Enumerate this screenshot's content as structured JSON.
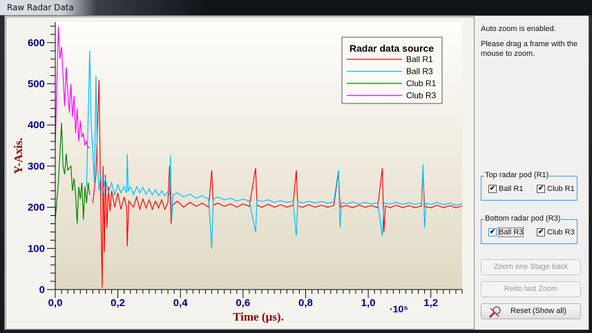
{
  "window": {
    "title": "Raw Radar Data"
  },
  "side": {
    "info1": "Auto zoom is enabled.",
    "info2": "Please drag a frame with the mouse to zoom.",
    "group_top": {
      "label": "Top radar pod (R1)",
      "ball": "Ball R1",
      "club": "Club R1",
      "ball_checked": true,
      "club_checked": true
    },
    "group_bottom": {
      "label": "Bottom radar pod (R3)",
      "ball": "Ball R3",
      "club": "Club R3",
      "ball_checked": true,
      "club_checked": true
    },
    "btn_back": "Zoom one Stage back",
    "btn_redo": "Redo last Zoom",
    "btn_reset": "Reset (Show all)",
    "check": "✔"
  },
  "chart_data": {
    "type": "line",
    "xlabel": "Time (µs).",
    "ylabel": "Y-Axis.",
    "x_multiplier": "·10⁵",
    "xlim": [
      0,
      1.3
    ],
    "ylim": [
      0,
      650
    ],
    "xticks": [
      "0,0",
      "0,2",
      "0,4",
      "0,6",
      "0,8",
      "1,0",
      "1,2"
    ],
    "xtick_values": [
      0,
      0.2,
      0.4,
      0.6,
      0.8,
      1.0,
      1.2
    ],
    "yticks": [
      0,
      100,
      200,
      300,
      400,
      500,
      600
    ],
    "legend": {
      "title": "Radar data source",
      "position": "top-right"
    },
    "series": [
      {
        "name": "Ball R1",
        "color": "#ff0000",
        "points": [
          [
            0.12,
            210
          ],
          [
            0.13,
            280
          ],
          [
            0.14,
            510
          ],
          [
            0.145,
            220
          ],
          [
            0.15,
            5
          ],
          [
            0.153,
            300
          ],
          [
            0.157,
            90
          ],
          [
            0.16,
            280
          ],
          [
            0.165,
            150
          ],
          [
            0.17,
            250
          ],
          [
            0.175,
            190
          ],
          [
            0.18,
            240
          ],
          [
            0.19,
            200
          ],
          [
            0.2,
            235
          ],
          [
            0.21,
            195
          ],
          [
            0.22,
            225
          ],
          [
            0.228,
            200
          ],
          [
            0.23,
            105
          ],
          [
            0.235,
            215
          ],
          [
            0.25,
            200
          ],
          [
            0.26,
            225
          ],
          [
            0.27,
            195
          ],
          [
            0.28,
            220
          ],
          [
            0.29,
            198
          ],
          [
            0.3,
            218
          ],
          [
            0.31,
            195
          ],
          [
            0.32,
            215
          ],
          [
            0.33,
            198
          ],
          [
            0.34,
            218
          ],
          [
            0.35,
            195
          ],
          [
            0.36,
            212
          ],
          [
            0.365,
            300
          ],
          [
            0.37,
            160
          ],
          [
            0.375,
            205
          ],
          [
            0.39,
            215
          ],
          [
            0.41,
            200
          ],
          [
            0.43,
            212
          ],
          [
            0.45,
            202
          ],
          [
            0.47,
            210
          ],
          [
            0.49,
            200
          ],
          [
            0.5,
            290
          ],
          [
            0.505,
            205
          ],
          [
            0.52,
            210
          ],
          [
            0.54,
            202
          ],
          [
            0.56,
            208
          ],
          [
            0.58,
            200
          ],
          [
            0.6,
            208
          ],
          [
            0.62,
            202
          ],
          [
            0.64,
            295
          ],
          [
            0.645,
            205
          ],
          [
            0.66,
            200
          ],
          [
            0.68,
            207
          ],
          [
            0.7,
            200
          ],
          [
            0.72,
            206
          ],
          [
            0.74,
            200
          ],
          [
            0.76,
            205
          ],
          [
            0.77,
            290
          ],
          [
            0.775,
            203
          ],
          [
            0.79,
            200
          ],
          [
            0.81,
            206
          ],
          [
            0.83,
            200
          ],
          [
            0.85,
            205
          ],
          [
            0.87,
            200
          ],
          [
            0.89,
            204
          ],
          [
            0.905,
            285
          ],
          [
            0.91,
            200
          ],
          [
            0.93,
            204
          ],
          [
            0.95,
            199
          ],
          [
            0.97,
            205
          ],
          [
            0.99,
            200
          ],
          [
            1.01,
            204
          ],
          [
            1.03,
            199
          ],
          [
            1.045,
            295
          ],
          [
            1.05,
            140
          ],
          [
            1.055,
            203
          ],
          [
            1.07,
            199
          ],
          [
            1.09,
            205
          ],
          [
            1.11,
            199
          ],
          [
            1.13,
            204
          ],
          [
            1.15,
            199
          ],
          [
            1.17,
            203
          ],
          [
            1.175,
            290
          ],
          [
            1.18,
            201
          ],
          [
            1.2,
            199
          ],
          [
            1.22,
            205
          ],
          [
            1.24,
            199
          ],
          [
            1.26,
            204
          ],
          [
            1.28,
            199
          ],
          [
            1.3,
            203
          ]
        ]
      },
      {
        "name": "Ball R3",
        "color": "#00bfff",
        "points": [
          [
            0.1,
            250
          ],
          [
            0.11,
            580
          ],
          [
            0.115,
            400
          ],
          [
            0.12,
            330
          ],
          [
            0.125,
            260
          ],
          [
            0.13,
            520
          ],
          [
            0.135,
            300
          ],
          [
            0.14,
            240
          ],
          [
            0.145,
            280
          ],
          [
            0.15,
            230
          ],
          [
            0.16,
            270
          ],
          [
            0.17,
            235
          ],
          [
            0.18,
            260
          ],
          [
            0.19,
            230
          ],
          [
            0.2,
            255
          ],
          [
            0.21,
            235
          ],
          [
            0.22,
            250
          ],
          [
            0.228,
            235
          ],
          [
            0.23,
            330
          ],
          [
            0.233,
            240
          ],
          [
            0.24,
            250
          ],
          [
            0.25,
            230
          ],
          [
            0.26,
            250
          ],
          [
            0.27,
            235
          ],
          [
            0.28,
            248
          ],
          [
            0.29,
            232
          ],
          [
            0.3,
            245
          ],
          [
            0.31,
            230
          ],
          [
            0.32,
            242
          ],
          [
            0.33,
            228
          ],
          [
            0.34,
            240
          ],
          [
            0.35,
            228
          ],
          [
            0.36,
            238
          ],
          [
            0.365,
            230
          ],
          [
            0.368,
            325
          ],
          [
            0.372,
            165
          ],
          [
            0.376,
            230
          ],
          [
            0.39,
            235
          ],
          [
            0.41,
            225
          ],
          [
            0.43,
            232
          ],
          [
            0.45,
            222
          ],
          [
            0.47,
            228
          ],
          [
            0.49,
            220
          ],
          [
            0.5,
            100
          ],
          [
            0.505,
            220
          ],
          [
            0.52,
            225
          ],
          [
            0.54,
            218
          ],
          [
            0.56,
            222
          ],
          [
            0.58,
            215
          ],
          [
            0.6,
            220
          ],
          [
            0.62,
            215
          ],
          [
            0.64,
            140
          ],
          [
            0.645,
            218
          ],
          [
            0.66,
            214
          ],
          [
            0.68,
            218
          ],
          [
            0.7,
            212
          ],
          [
            0.72,
            216
          ],
          [
            0.74,
            212
          ],
          [
            0.76,
            215
          ],
          [
            0.77,
            130
          ],
          [
            0.775,
            214
          ],
          [
            0.79,
            210
          ],
          [
            0.81,
            215
          ],
          [
            0.83,
            210
          ],
          [
            0.85,
            214
          ],
          [
            0.87,
            210
          ],
          [
            0.89,
            213
          ],
          [
            0.905,
            290
          ],
          [
            0.91,
            150
          ],
          [
            0.915,
            212
          ],
          [
            0.93,
            208
          ],
          [
            0.95,
            213
          ],
          [
            0.97,
            208
          ],
          [
            0.99,
            212
          ],
          [
            1.01,
            208
          ],
          [
            1.03,
            211
          ],
          [
            1.045,
            130
          ],
          [
            1.05,
            210
          ],
          [
            1.07,
            208
          ],
          [
            1.09,
            212
          ],
          [
            1.11,
            207
          ],
          [
            1.13,
            211
          ],
          [
            1.15,
            207
          ],
          [
            1.17,
            210
          ],
          [
            1.175,
            305
          ],
          [
            1.18,
            150
          ],
          [
            1.185,
            210
          ],
          [
            1.2,
            207
          ],
          [
            1.22,
            212
          ],
          [
            1.24,
            206
          ],
          [
            1.26,
            210
          ],
          [
            1.28,
            205
          ],
          [
            1.3,
            208
          ]
        ]
      },
      {
        "name": "Club R1",
        "color": "#008000",
        "points": [
          [
            0.0,
            170
          ],
          [
            0.01,
            260
          ],
          [
            0.02,
            405
          ],
          [
            0.025,
            300
          ],
          [
            0.03,
            280
          ],
          [
            0.035,
            330
          ],
          [
            0.04,
            290
          ],
          [
            0.05,
            300
          ],
          [
            0.055,
            240
          ],
          [
            0.06,
            270
          ],
          [
            0.065,
            230
          ],
          [
            0.07,
            160
          ],
          [
            0.075,
            250
          ],
          [
            0.08,
            220
          ],
          [
            0.085,
            260
          ],
          [
            0.09,
            170
          ],
          [
            0.095,
            250
          ],
          [
            0.1,
            210
          ],
          [
            0.105,
            260
          ],
          [
            0.11,
            230
          ]
        ]
      },
      {
        "name": "Club R3",
        "color": "#ff00ff",
        "points": [
          [
            0.0,
            350
          ],
          [
            0.01,
            640
          ],
          [
            0.015,
            560
          ],
          [
            0.02,
            590
          ],
          [
            0.025,
            520
          ],
          [
            0.03,
            445
          ],
          [
            0.035,
            540
          ],
          [
            0.04,
            480
          ],
          [
            0.045,
            430
          ],
          [
            0.05,
            500
          ],
          [
            0.055,
            420
          ],
          [
            0.06,
            470
          ],
          [
            0.065,
            380
          ],
          [
            0.07,
            440
          ],
          [
            0.075,
            360
          ],
          [
            0.08,
            410
          ],
          [
            0.085,
            370
          ],
          [
            0.09,
            380
          ],
          [
            0.095,
            350
          ],
          [
            0.1,
            360
          ],
          [
            0.105,
            345
          ],
          [
            0.11,
            345
          ]
        ]
      }
    ]
  }
}
